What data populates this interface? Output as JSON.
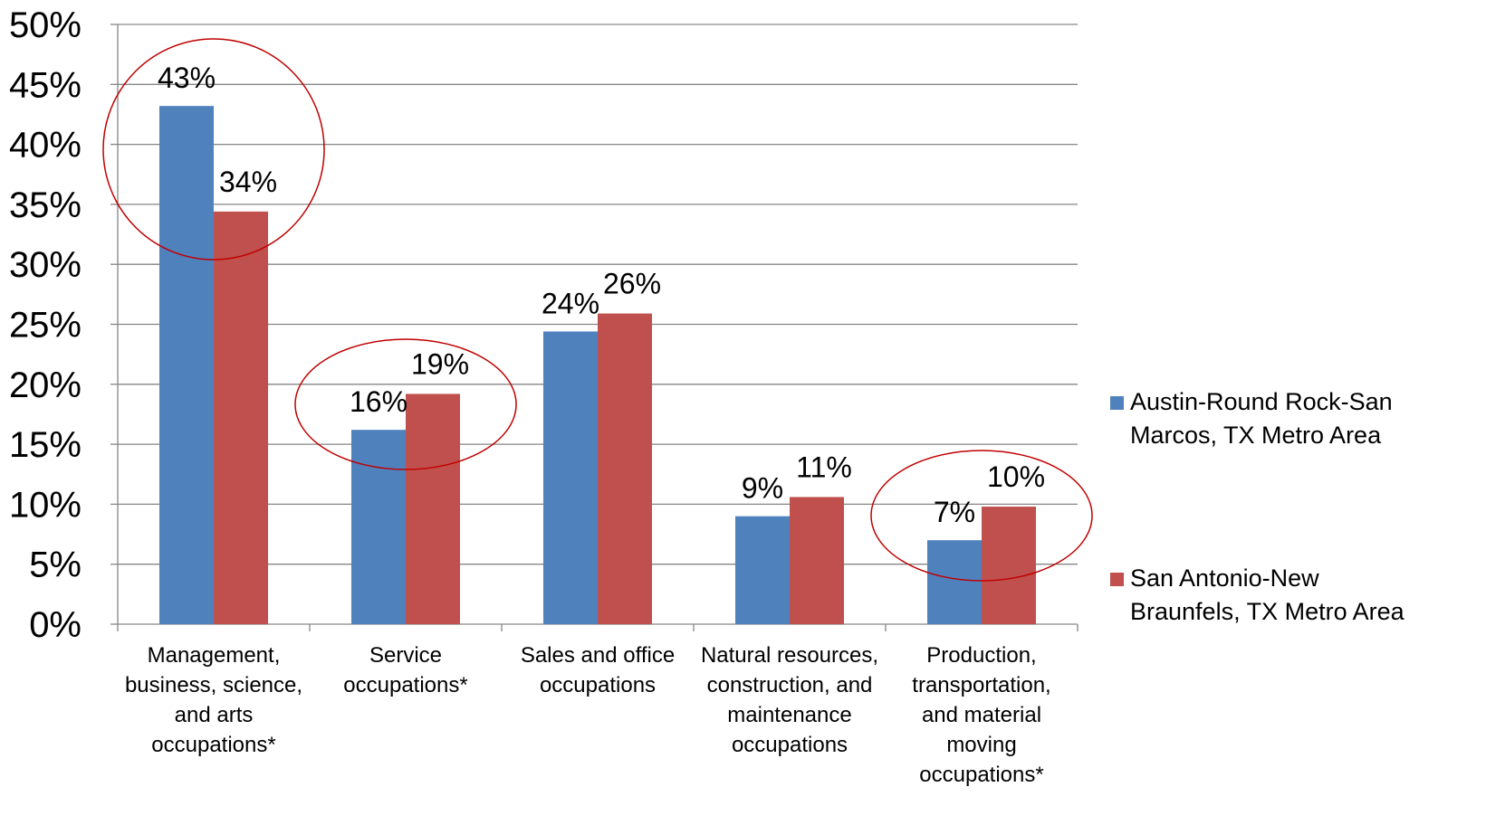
{
  "chart_data": {
    "type": "bar",
    "categories": [
      [
        "Management,",
        "business, science,",
        "and arts",
        "occupations*"
      ],
      [
        "Service",
        "occupations*"
      ],
      [
        "Sales and office",
        "occupations"
      ],
      [
        "Natural resources,",
        "construction, and",
        "maintenance",
        "occupations"
      ],
      [
        "Production,",
        "transportation,",
        "and material",
        "moving",
        "occupations*"
      ]
    ],
    "series": [
      {
        "name": [
          "Austin-Round Rock-San",
          "Marcos, TX Metro Area"
        ],
        "color": "#4F81BD",
        "values": [
          43.2,
          16.2,
          24.4,
          9.0,
          7.0
        ],
        "labels": [
          "43%",
          "16%",
          "24%",
          "9%",
          "7%"
        ]
      },
      {
        "name": [
          "San Antonio-New",
          "Braunfels, TX Metro Area"
        ],
        "color": "#C0504D",
        "values": [
          34.4,
          19.2,
          25.9,
          10.6,
          9.8
        ],
        "labels": [
          "34%",
          "19%",
          "26%",
          "11%",
          "10%"
        ]
      }
    ],
    "ylim": [
      0,
      50
    ],
    "yticks": [
      0,
      5,
      10,
      15,
      20,
      25,
      30,
      35,
      40,
      45,
      50
    ],
    "ytick_labels": [
      "0%",
      "5%",
      "10%",
      "15%",
      "20%",
      "25%",
      "30%",
      "35%",
      "40%",
      "45%",
      "50%"
    ],
    "grid": true,
    "legend_position": "right",
    "highlighted_categories": [
      0,
      1,
      4
    ],
    "highlight_color": "#C00000"
  }
}
